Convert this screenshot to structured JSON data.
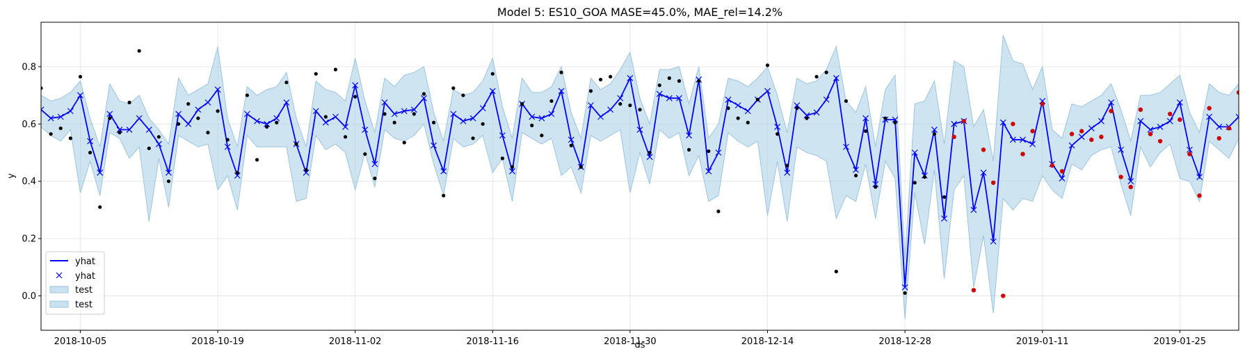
{
  "chart_data": {
    "type": "line",
    "title": "Model 5: ES10_GOA MASE=45.0%, MAE_rel=14.2%",
    "xlabel": "ds",
    "ylabel": "y",
    "x_start": "2018-10-01",
    "x_end": "2019-01-31",
    "ylim": [
      -0.12,
      0.955
    ],
    "xticks": [
      "2018-10-05",
      "2018-10-19",
      "2018-11-02",
      "2018-11-16",
      "2018-11-30",
      "2018-12-14",
      "2018-12-28",
      "2019-01-11",
      "2019-01-25"
    ],
    "yticks": [
      0.0,
      0.2,
      0.4,
      0.6,
      0.8
    ],
    "yticks_labels": [
      "0.0",
      "0.2",
      "0.4",
      "0.6",
      "0.8"
    ],
    "grid": true,
    "legend_position": "lower-left",
    "legend": [
      {
        "label": "yhat",
        "kind": "line",
        "color": "#0000ff"
      },
      {
        "label": "yhat",
        "kind": "marker",
        "color": "#0000ff"
      },
      {
        "label": "test",
        "kind": "band",
        "color": "#a6cfe6"
      },
      {
        "label": "test",
        "kind": "band",
        "color": "#a6cfe6"
      }
    ],
    "colors": {
      "line": "#0000ff",
      "band": "#a6cfe6",
      "band_edge": "#9cc3df",
      "train": "#000000",
      "test": "#cc0000"
    },
    "yhat": {
      "x": [
        "2018-10-01",
        "2018-10-02",
        "2018-10-03",
        "2018-10-04",
        "2018-10-05",
        "2018-10-06",
        "2018-10-07",
        "2018-10-08",
        "2018-10-09",
        "2018-10-10",
        "2018-10-11",
        "2018-10-12",
        "2018-10-13",
        "2018-10-14",
        "2018-10-15",
        "2018-10-16",
        "2018-10-17",
        "2018-10-18",
        "2018-10-19",
        "2018-10-20",
        "2018-10-21",
        "2018-10-22",
        "2018-10-23",
        "2018-10-24",
        "2018-10-25",
        "2018-10-26",
        "2018-10-27",
        "2018-10-28",
        "2018-10-29",
        "2018-10-30",
        "2018-10-31",
        "2018-11-01",
        "2018-11-02",
        "2018-11-03",
        "2018-11-04",
        "2018-11-05",
        "2018-11-06",
        "2018-11-07",
        "2018-11-08",
        "2018-11-09",
        "2018-11-10",
        "2018-11-11",
        "2018-11-12",
        "2018-11-13",
        "2018-11-14",
        "2018-11-15",
        "2018-11-16",
        "2018-11-17",
        "2018-11-18",
        "2018-11-19",
        "2018-11-20",
        "2018-11-21",
        "2018-11-22",
        "2018-11-23",
        "2018-11-24",
        "2018-11-25",
        "2018-11-26",
        "2018-11-27",
        "2018-11-28",
        "2018-11-29",
        "2018-11-30",
        "2018-12-01",
        "2018-12-02",
        "2018-12-03",
        "2018-12-04",
        "2018-12-05",
        "2018-12-06",
        "2018-12-07",
        "2018-12-08",
        "2018-12-09",
        "2018-12-10",
        "2018-12-11",
        "2018-12-12",
        "2018-12-13",
        "2018-12-14",
        "2018-12-15",
        "2018-12-16",
        "2018-12-17",
        "2018-12-18",
        "2018-12-19",
        "2018-12-20",
        "2018-12-21",
        "2018-12-22",
        "2018-12-23",
        "2018-12-24",
        "2018-12-25",
        "2018-12-26",
        "2018-12-27",
        "2018-12-28",
        "2018-12-29",
        "2018-12-30",
        "2018-12-31",
        "2019-01-01",
        "2019-01-02",
        "2019-01-03",
        "2019-01-04",
        "2019-01-05",
        "2019-01-06",
        "2019-01-07",
        "2019-01-08",
        "2019-01-09",
        "2019-01-10",
        "2019-01-11",
        "2019-01-12",
        "2019-01-13",
        "2019-01-14",
        "2019-01-15",
        "2019-01-16",
        "2019-01-17",
        "2019-01-18",
        "2019-01-19",
        "2019-01-20",
        "2019-01-21",
        "2019-01-22",
        "2019-01-23",
        "2019-01-24",
        "2019-01-25",
        "2019-01-26",
        "2019-01-27",
        "2019-01-28",
        "2019-01-29",
        "2019-01-30",
        "2019-01-31"
      ],
      "y": [
        0.65,
        0.62,
        0.625,
        0.645,
        0.7,
        0.54,
        0.43,
        0.635,
        0.58,
        0.58,
        0.62,
        0.58,
        0.53,
        0.43,
        0.635,
        0.6,
        0.65,
        0.675,
        0.72,
        0.52,
        0.42,
        0.635,
        0.61,
        0.6,
        0.62,
        0.675,
        0.53,
        0.43,
        0.645,
        0.605,
        0.625,
        0.59,
        0.735,
        0.58,
        0.46,
        0.675,
        0.635,
        0.645,
        0.65,
        0.69,
        0.525,
        0.435,
        0.635,
        0.61,
        0.62,
        0.655,
        0.715,
        0.56,
        0.435,
        0.67,
        0.625,
        0.62,
        0.635,
        0.715,
        0.545,
        0.45,
        0.665,
        0.625,
        0.65,
        0.69,
        0.76,
        0.58,
        0.485,
        0.705,
        0.69,
        0.69,
        0.56,
        0.755,
        0.435,
        0.5,
        0.685,
        0.665,
        0.645,
        0.685,
        0.715,
        0.59,
        0.43,
        0.665,
        0.63,
        0.64,
        0.685,
        0.76,
        0.52,
        0.44,
        0.62,
        0.39,
        0.615,
        0.615,
        0.03,
        0.5,
        0.42,
        0.58,
        0.27,
        0.6,
        0.61,
        0.3,
        0.43,
        0.19,
        0.605,
        0.545,
        0.545,
        0.53,
        0.68,
        0.46,
        0.41,
        0.525,
        0.555,
        0.585,
        0.61,
        0.675,
        0.51,
        0.4,
        0.61,
        0.58,
        0.59,
        0.61,
        0.675,
        0.51,
        0.415,
        0.625,
        0.59,
        0.59,
        0.625
      ],
      "upper": [
        0.7,
        0.68,
        0.69,
        0.71,
        0.75,
        0.62,
        0.52,
        0.74,
        0.68,
        0.67,
        0.7,
        0.62,
        0.58,
        0.53,
        0.76,
        0.7,
        0.72,
        0.74,
        0.87,
        0.62,
        0.52,
        0.73,
        0.7,
        0.72,
        0.73,
        0.78,
        0.62,
        0.52,
        0.75,
        0.72,
        0.71,
        0.68,
        0.83,
        0.68,
        0.57,
        0.76,
        0.73,
        0.77,
        0.78,
        0.8,
        0.64,
        0.54,
        0.72,
        0.7,
        0.71,
        0.75,
        0.83,
        0.66,
        0.55,
        0.76,
        0.71,
        0.71,
        0.73,
        0.8,
        0.64,
        0.55,
        0.76,
        0.72,
        0.74,
        0.79,
        0.85,
        0.69,
        0.6,
        0.79,
        0.79,
        0.8,
        0.67,
        0.8,
        0.55,
        0.6,
        0.76,
        0.75,
        0.73,
        0.76,
        0.8,
        0.7,
        0.57,
        0.76,
        0.74,
        0.75,
        0.79,
        0.87,
        0.68,
        0.64,
        0.73,
        0.52,
        0.72,
        0.77,
        0.13,
        0.67,
        0.68,
        0.75,
        0.53,
        0.82,
        0.8,
        0.59,
        0.65,
        0.47,
        0.91,
        0.82,
        0.81,
        0.72,
        0.8,
        0.58,
        0.55,
        0.67,
        0.66,
        0.68,
        0.7,
        0.74,
        0.65,
        0.54,
        0.7,
        0.7,
        0.71,
        0.74,
        0.77,
        0.64,
        0.57,
        0.74,
        0.71,
        0.7,
        0.74
      ],
      "lower": [
        0.59,
        0.56,
        0.54,
        0.58,
        0.36,
        0.47,
        0.35,
        0.57,
        0.55,
        0.48,
        0.52,
        0.26,
        0.48,
        0.31,
        0.56,
        0.54,
        0.52,
        0.53,
        0.37,
        0.42,
        0.3,
        0.56,
        0.52,
        0.52,
        0.52,
        0.52,
        0.33,
        0.34,
        0.56,
        0.51,
        0.53,
        0.5,
        0.37,
        0.5,
        0.38,
        0.58,
        0.55,
        0.54,
        0.56,
        0.6,
        0.46,
        0.35,
        0.55,
        0.52,
        0.53,
        0.56,
        0.43,
        0.48,
        0.33,
        0.57,
        0.55,
        0.53,
        0.55,
        0.42,
        0.45,
        0.36,
        0.56,
        0.54,
        0.56,
        0.58,
        0.36,
        0.5,
        0.39,
        0.58,
        0.55,
        0.57,
        0.42,
        0.49,
        0.33,
        0.35,
        0.57,
        0.54,
        0.52,
        0.54,
        0.28,
        0.47,
        0.26,
        0.52,
        0.5,
        0.49,
        0.47,
        0.27,
        0.35,
        0.33,
        0.46,
        0.27,
        0.47,
        0.41,
        -0.08,
        0.36,
        0.18,
        0.44,
        0.06,
        0.37,
        0.42,
        0.03,
        0.21,
        -0.06,
        0.34,
        0.3,
        0.34,
        0.33,
        0.42,
        0.37,
        0.34,
        0.46,
        0.44,
        0.49,
        0.51,
        0.52,
        0.39,
        0.28,
        0.52,
        0.45,
        0.5,
        0.53,
        0.41,
        0.4,
        0.33,
        0.54,
        0.51,
        0.48,
        0.55
      ]
    },
    "train_points": {
      "x": [
        "2018-10-01",
        "2018-10-02",
        "2018-10-03",
        "2018-10-04",
        "2018-10-05",
        "2018-10-06",
        "2018-10-07",
        "2018-10-08",
        "2018-10-09",
        "2018-10-10",
        "2018-10-11",
        "2018-10-12",
        "2018-10-13",
        "2018-10-14",
        "2018-10-15",
        "2018-10-16",
        "2018-10-17",
        "2018-10-18",
        "2018-10-19",
        "2018-10-20",
        "2018-10-21",
        "2018-10-22",
        "2018-10-23",
        "2018-10-24",
        "2018-10-25",
        "2018-10-26",
        "2018-10-27",
        "2018-10-28",
        "2018-10-29",
        "2018-10-30",
        "2018-10-31",
        "2018-11-01",
        "2018-11-02",
        "2018-11-03",
        "2018-11-04",
        "2018-11-05",
        "2018-11-06",
        "2018-11-07",
        "2018-11-08",
        "2018-11-09",
        "2018-11-10",
        "2018-11-11",
        "2018-11-12",
        "2018-11-13",
        "2018-11-14",
        "2018-11-15",
        "2018-11-16",
        "2018-11-17",
        "2018-11-18",
        "2018-11-19",
        "2018-11-20",
        "2018-11-21",
        "2018-11-22",
        "2018-11-23",
        "2018-11-24",
        "2018-11-25",
        "2018-11-26",
        "2018-11-27",
        "2018-11-28",
        "2018-11-29",
        "2018-11-30",
        "2018-12-01",
        "2018-12-02",
        "2018-12-03",
        "2018-12-04",
        "2018-12-05",
        "2018-12-06",
        "2018-12-07",
        "2018-12-08",
        "2018-12-09",
        "2018-12-10",
        "2018-12-11",
        "2018-12-12",
        "2018-12-13",
        "2018-12-14",
        "2018-12-15",
        "2018-12-16",
        "2018-12-17",
        "2018-12-18",
        "2018-12-19",
        "2018-12-20",
        "2018-12-21",
        "2018-12-22",
        "2018-12-23",
        "2018-12-24",
        "2018-12-25",
        "2018-12-26",
        "2018-12-27",
        "2018-12-28",
        "2018-12-29",
        "2018-12-30",
        "2018-12-31",
        "2019-01-01"
      ],
      "y": [
        0.725,
        0.565,
        0.585,
        0.55,
        0.765,
        0.5,
        0.31,
        0.62,
        0.57,
        0.675,
        0.855,
        0.515,
        0.555,
        0.4,
        0.6,
        0.67,
        0.62,
        0.57,
        0.645,
        0.545,
        0.43,
        0.7,
        0.475,
        0.59,
        0.605,
        0.745,
        0.53,
        0.44,
        0.775,
        0.625,
        0.79,
        0.555,
        0.695,
        0.495,
        0.41,
        0.635,
        0.605,
        0.535,
        0.635,
        0.705,
        0.605,
        0.35,
        0.725,
        0.7,
        0.55,
        0.6,
        0.775,
        0.48,
        0.45,
        0.67,
        0.595,
        0.56,
        0.68,
        0.78,
        0.525,
        0.45,
        0.715,
        0.755,
        0.765,
        0.67,
        0.665,
        0.65,
        0.5,
        0.735,
        0.76,
        0.75,
        0.51,
        0.75,
        0.505,
        0.295,
        0.655,
        0.62,
        0.605,
        0.685,
        0.805,
        0.565,
        0.455,
        0.655,
        0.62,
        0.765,
        0.78,
        0.085,
        0.68,
        0.42,
        0.575,
        0.38,
        0.62,
        0.605,
        0.01,
        0.395,
        0.415,
        0.565,
        0.345
      ]
    },
    "test_points": {
      "x": [
        "2019-01-02",
        "2019-01-03",
        "2019-01-04",
        "2019-01-05",
        "2019-01-06",
        "2019-01-07",
        "2019-01-08",
        "2019-01-09",
        "2019-01-10",
        "2019-01-11",
        "2019-01-12",
        "2019-01-13",
        "2019-01-14",
        "2019-01-15",
        "2019-01-16",
        "2019-01-17",
        "2019-01-18",
        "2019-01-19",
        "2019-01-20",
        "2019-01-21",
        "2019-01-22",
        "2019-01-23",
        "2019-01-24",
        "2019-01-25",
        "2019-01-26",
        "2019-01-27",
        "2019-01-28",
        "2019-01-29",
        "2019-01-30",
        "2019-01-31"
      ],
      "y": [
        0.555,
        0.61,
        0.02,
        0.51,
        0.395,
        0.0,
        0.6,
        0.495,
        0.575,
        0.67,
        0.455,
        0.435,
        0.565,
        0.575,
        0.545,
        0.555,
        0.645,
        0.415,
        0.38,
        0.65,
        0.565,
        0.54,
        0.635,
        0.615,
        0.495,
        0.35,
        0.655,
        0.55,
        0.585,
        0.71
      ]
    }
  }
}
